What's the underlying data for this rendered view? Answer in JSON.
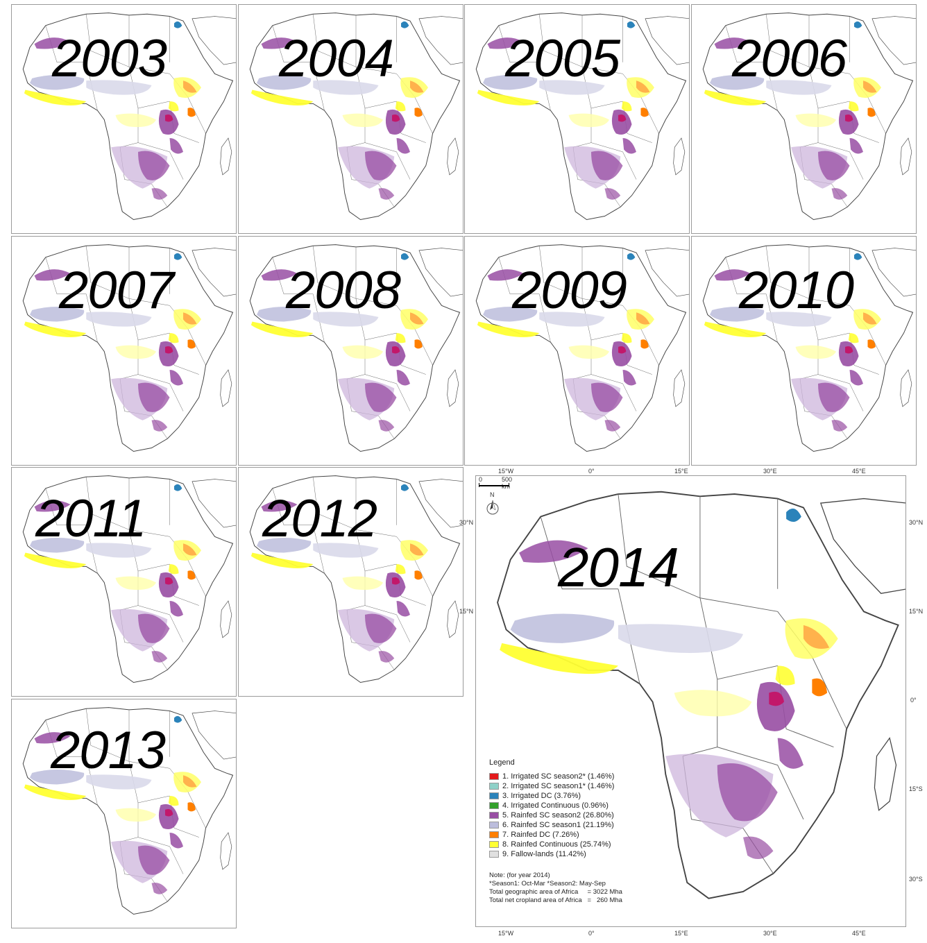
{
  "small_panels": [
    {
      "year": "2003"
    },
    {
      "year": "2004"
    },
    {
      "year": "2005"
    },
    {
      "year": "2006"
    },
    {
      "year": "2007"
    },
    {
      "year": "2008"
    },
    {
      "year": "2009"
    },
    {
      "year": "2010"
    },
    {
      "year": "2011"
    },
    {
      "year": "2012"
    },
    {
      "year": "2013"
    }
  ],
  "main_panel": {
    "year": "2014",
    "graticule": {
      "top_lon": [
        "15°W",
        "0°",
        "15°E",
        "30°E",
        "45°E"
      ],
      "bottom_lon": [
        "15°W",
        "0°",
        "15°E",
        "30°E",
        "45°E"
      ],
      "right_lat": [
        "30°N",
        "15°N",
        "0°",
        "15°S",
        "30°S"
      ],
      "left_lat_partial": [
        "30°N",
        "15°N"
      ]
    },
    "scale_bar": {
      "start": "0",
      "end": "500 km"
    },
    "north_arrow": {
      "label": "N",
      "icon": "north-arrow-icon"
    },
    "legend": {
      "title": "Legend",
      "items": [
        {
          "label": "1. Irrigated SC season2* (1.46%)",
          "color": "#e31a1c"
        },
        {
          "label": "2. Irrigated SC season1* (1.46%)",
          "color": "#8fd1c8"
        },
        {
          "label": "3. Irrigated DC (3.76%)",
          "color": "#2b83ba"
        },
        {
          "label": "4. Irrigated Continuous (0.96%)",
          "color": "#33a02c"
        },
        {
          "label": "5. Rainfed SC season2 (26.80%)",
          "color": "#984ea3"
        },
        {
          "label": "6. Rainfed SC season1 (21.19%)",
          "color": "#bcbddc"
        },
        {
          "label": "7. Rainfed DC (7.26%)",
          "color": "#ff7f00"
        },
        {
          "label": "8. Rainfed Continuous (25.74%)",
          "color": "#ffff33"
        },
        {
          "label": "9. Fallow-lands (11.42%)",
          "color": "#e0e0e0"
        }
      ]
    },
    "notes": [
      "Note: (for year 2014)",
      "*Season1: Oct-Mar *Season2: May-Sep",
      "Total geographic area of Africa     = 3022 Mha",
      "Total net cropland area of Africa   =   260 Mha"
    ]
  }
}
